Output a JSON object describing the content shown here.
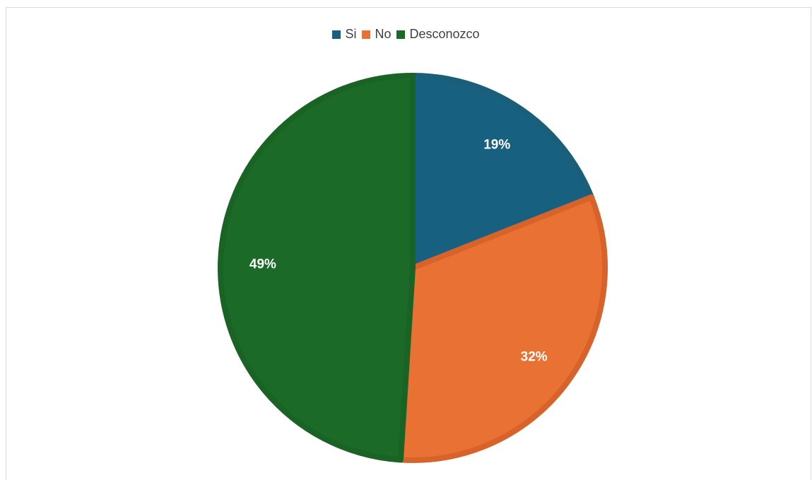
{
  "chart_data": {
    "type": "pie",
    "title": "",
    "categories": [
      "Si",
      "No",
      "Desconozco"
    ],
    "values": [
      19,
      32,
      49
    ],
    "data_labels": [
      "19%",
      "32%",
      "49%"
    ],
    "colors": [
      "#17607f",
      "#e87133",
      "#1b6a27"
    ],
    "stroke_colors": [
      "#1a5e7a",
      "#d8632a",
      "#196325"
    ],
    "legend_position": "top"
  },
  "legend": {
    "items": [
      {
        "label": "Si",
        "color": "#17607f"
      },
      {
        "label": "No",
        "color": "#e87133"
      },
      {
        "label": "Desconozco",
        "color": "#1b6a27"
      }
    ]
  }
}
